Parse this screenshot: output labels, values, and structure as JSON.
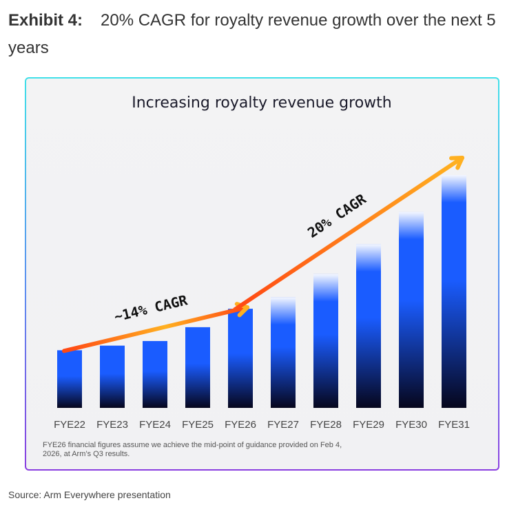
{
  "header": {
    "label": "Exhibit 4:",
    "title": "20% CAGR for royalty revenue growth over the next 5 years"
  },
  "chart_data": {
    "type": "bar",
    "title": "Increasing royalty revenue growth",
    "categories": [
      "FYE22",
      "FYE23",
      "FYE24",
      "FYE25",
      "FYE26",
      "FYE27",
      "FYE28",
      "FYE29",
      "FYE30",
      "FYE31"
    ],
    "values": [
      25,
      27,
      29,
      35,
      43,
      48,
      58,
      71,
      85,
      101
    ],
    "ylim": [
      0,
      101
    ],
    "grid": false,
    "bar_colors": {
      "top": "#1a5cff",
      "bottom": "#06061c"
    },
    "arrow_colors": {
      "start": "#ff4a14",
      "end": "#ffb020"
    },
    "annotations": [
      {
        "text": "~14% CAGR",
        "from": "FYE22",
        "to": "FYE26"
      },
      {
        "text": "20% CAGR",
        "from": "FYE26",
        "to": "FYE31"
      }
    ]
  },
  "note": "FYE26 financial figures assume we achieve the mid-point of guidance provided on Feb 4, 2026, at Arm’s Q3 results.",
  "source": "Source: Arm Everywhere presentation"
}
